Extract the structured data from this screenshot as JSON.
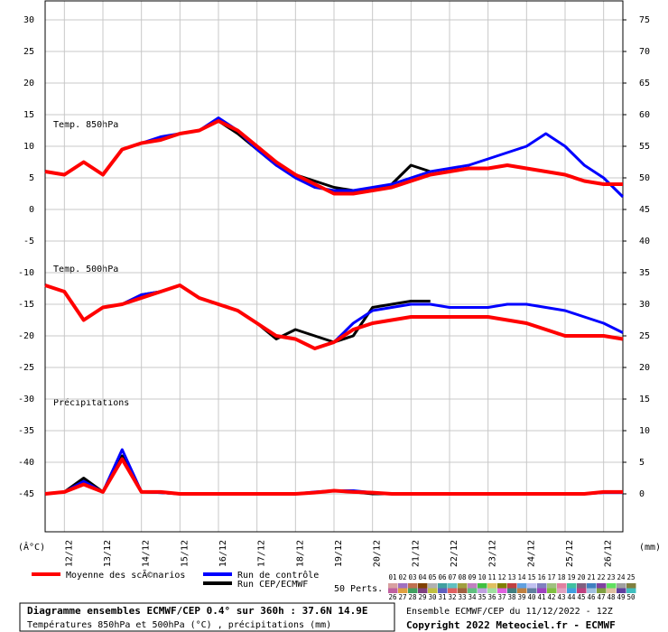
{
  "chart_data": {
    "type": "line",
    "categories": [
      null,
      "12/12",
      null,
      "13/12",
      null,
      "14/12",
      null,
      "15/12",
      null,
      "16/12",
      null,
      "17/12",
      null,
      "18/12",
      null,
      "19/12",
      null,
      "20/12",
      null,
      "21/12",
      null,
      "22/12",
      null,
      "23/12",
      null,
      "24/12",
      null,
      "25/12",
      null,
      "26/12",
      null
    ],
    "ylim": [
      -51,
      33
    ],
    "yticks": [
      30,
      25,
      20,
      15,
      10,
      5,
      0,
      -5,
      -10,
      -15,
      -20,
      -25,
      -30,
      -35,
      -40,
      -45
    ],
    "y2lim": [
      -6,
      78
    ],
    "y2ticks": [
      75,
      70,
      65,
      60,
      55,
      50,
      45,
      40,
      35,
      30,
      25,
      20,
      15,
      10,
      5,
      0
    ],
    "grid": true,
    "y_unit_label": "(Â°C)",
    "y2_unit_label": "(mm)",
    "annotations": [
      "Temp. 850hPa",
      "Temp. 500hPa",
      "Précipitations"
    ],
    "series": [
      {
        "name": "Moyenne des scÃ©narios",
        "color": "#ff0000",
        "values": [
          6,
          5.5,
          7.5,
          5.5,
          9.5,
          10.5,
          11,
          12,
          12.5,
          14,
          12.5,
          10,
          7.5,
          5.5,
          4,
          2.5,
          2.5,
          3,
          3.5,
          4.5,
          5.5,
          6,
          6.5,
          6.5,
          7,
          6.5,
          6,
          5.5,
          4.5,
          4,
          4
        ],
        "values_500": [
          -12,
          -13,
          -17.5,
          -15.5,
          -15,
          -14,
          -13,
          -12,
          -14,
          -15,
          -16,
          -18,
          -20,
          -20.5,
          -22,
          -21,
          -19,
          -18,
          -17.5,
          -17,
          -17,
          -17,
          -17,
          -17,
          -17.5,
          -18,
          -19,
          -20,
          -20,
          -20,
          -20.5
        ],
        "values_precip": [
          0,
          0.3,
          1.5,
          0.3,
          5.5,
          0.3,
          0.3,
          0,
          0,
          0,
          0,
          0,
          0,
          0,
          0.2,
          0.5,
          0.3,
          0.2,
          0,
          0,
          0,
          0,
          0,
          0,
          0,
          0,
          0,
          0,
          0,
          0.3,
          0.3
        ]
      },
      {
        "name": "Run de contrôle",
        "color": "#0000ff",
        "values": [
          6,
          5.5,
          7.5,
          5.5,
          9.5,
          10.5,
          11.5,
          12,
          12.5,
          14.5,
          12.5,
          9.5,
          7,
          5,
          3.5,
          3,
          3,
          3.5,
          4,
          5,
          6,
          6.5,
          7,
          8,
          9,
          10,
          12,
          10,
          7,
          5,
          2
        ],
        "values_500": [
          -12,
          -13,
          -17.5,
          -15.5,
          -15,
          -13.5,
          -13,
          -12,
          -14,
          -15,
          -16,
          -18,
          -20,
          -20.5,
          -22,
          -21,
          -18,
          -16,
          -15.5,
          -15,
          -15,
          -15.5,
          -15.5,
          -15.5,
          -15,
          -15,
          -15.5,
          -16,
          -17,
          -18,
          -19.5
        ],
        "values_precip": [
          0,
          0.3,
          2,
          0.3,
          7,
          0.3,
          0.2,
          0,
          0,
          0,
          0,
          0,
          0,
          0,
          0.3,
          0.5,
          0.5,
          0.2,
          0,
          0,
          0,
          0,
          0,
          0,
          0,
          0,
          0,
          0,
          0,
          0.2,
          0.2
        ]
      },
      {
        "name": "Run CEP/ECMWF",
        "color": "#000000",
        "values": [
          6,
          5.5,
          7.5,
          5.5,
          9.5,
          10.5,
          11,
          12,
          12.5,
          14,
          12,
          9.5,
          7,
          5.5,
          4.5,
          3.5,
          3,
          3,
          4,
          7,
          6,
          null,
          null,
          null,
          null,
          null,
          null,
          null,
          null,
          null,
          null
        ],
        "values_500": [
          -12,
          -13,
          -17.5,
          -15.5,
          -15,
          -13.5,
          -13,
          -12,
          -14,
          -15,
          -16,
          -18,
          -20.5,
          -19,
          -20,
          -21,
          -20,
          -15.5,
          -15,
          -14.5,
          -14.5,
          null,
          null,
          null,
          null,
          null,
          null,
          null,
          null,
          null,
          null
        ],
        "values_precip": [
          0,
          0.3,
          2.5,
          0.3,
          6,
          0.3,
          0.2,
          0,
          0,
          0,
          0,
          0,
          0,
          0,
          0.2,
          0.5,
          0.3,
          0,
          0,
          0,
          0,
          null,
          null,
          null,
          null,
          null,
          null,
          null,
          null,
          null,
          null
        ]
      }
    ],
    "perturbations": {
      "label": "50 Perts.",
      "members": [
        {
          "label": "01",
          "color": "#d8a0a0"
        },
        {
          "label": "02",
          "color": "#a070c0"
        },
        {
          "label": "03",
          "color": "#c07050"
        },
        {
          "label": "04",
          "color": "#804000"
        },
        {
          "label": "05",
          "color": "#b0b0b0"
        },
        {
          "label": "06",
          "color": "#40a0a0"
        },
        {
          "label": "07",
          "color": "#60c0c0"
        },
        {
          "label": "08",
          "color": "#a0a040"
        },
        {
          "label": "09",
          "color": "#c080c0"
        },
        {
          "label": "10",
          "color": "#40c040"
        },
        {
          "label": "11",
          "color": "#e0c060"
        },
        {
          "label": "12",
          "color": "#808000"
        },
        {
          "label": "13",
          "color": "#c04040"
        },
        {
          "label": "14",
          "color": "#60a0e0"
        },
        {
          "label": "15",
          "color": "#c0c0f0"
        },
        {
          "label": "16",
          "color": "#8080c0"
        },
        {
          "label": "17",
          "color": "#a0c080"
        },
        {
          "label": "18",
          "color": "#e080a0"
        },
        {
          "label": "19",
          "color": "#40c0a0"
        },
        {
          "label": "20",
          "color": "#806080"
        },
        {
          "label": "21",
          "color": "#4080c0"
        },
        {
          "label": "22",
          "color": "#8040a0"
        },
        {
          "label": "23",
          "color": "#60e060"
        },
        {
          "label": "24",
          "color": "#a0a0a0"
        },
        {
          "label": "25",
          "color": "#808040"
        },
        {
          "label": "26",
          "color": "#c060a0"
        },
        {
          "label": "27",
          "color": "#e0a040"
        },
        {
          "label": "28",
          "color": "#40a060"
        },
        {
          "label": "29",
          "color": "#804080"
        },
        {
          "label": "30",
          "color": "#c0c040"
        },
        {
          "label": "31",
          "color": "#6060c0"
        },
        {
          "label": "32",
          "color": "#e06060"
        },
        {
          "label": "33",
          "color": "#a06040"
        },
        {
          "label": "34",
          "color": "#60c080"
        },
        {
          "label": "35",
          "color": "#c0a0e0"
        },
        {
          "label": "36",
          "color": "#a0e0a0"
        },
        {
          "label": "37",
          "color": "#e060e0"
        },
        {
          "label": "38",
          "color": "#408080"
        },
        {
          "label": "39",
          "color": "#c08040"
        },
        {
          "label": "40",
          "color": "#6080a0"
        },
        {
          "label": "41",
          "color": "#a040c0"
        },
        {
          "label": "42",
          "color": "#80c040"
        },
        {
          "label": "43",
          "color": "#e0a0c0"
        },
        {
          "label": "44",
          "color": "#40a0e0"
        },
        {
          "label": "45",
          "color": "#c04080"
        },
        {
          "label": "46",
          "color": "#a0c0e0"
        },
        {
          "label": "47",
          "color": "#80a040"
        },
        {
          "label": "48",
          "color": "#e0c0a0"
        },
        {
          "label": "49",
          "color": "#6040a0"
        },
        {
          "label": "50",
          "color": "#40c0c0"
        }
      ]
    },
    "footer": {
      "title": "Diagramme ensembles ECMWF/CEP 0.4° sur 360h : 37.6N 14.9E",
      "subtitle": "Températures 850hPa et 500hPa (°C) , précipitations (mm)",
      "run": "Ensemble ECMWF/CEP du 11/12/2022 - 12Z",
      "copyright": "Copyright 2022 Meteociel.fr - ECMWF"
    }
  }
}
